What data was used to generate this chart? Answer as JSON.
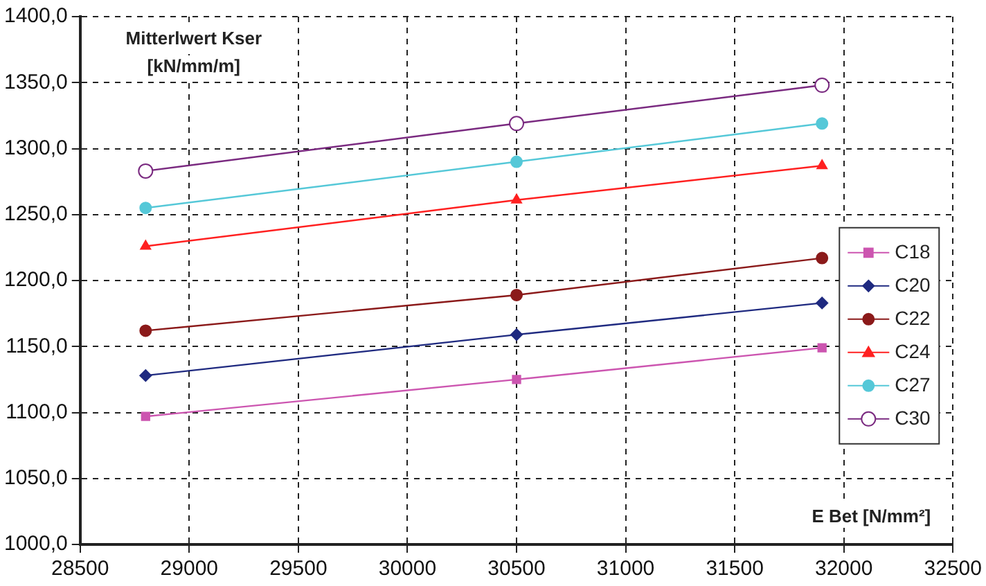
{
  "chart_data": {
    "type": "line",
    "ylabel": "Mitterlwert Kser\n[kN/mm/m]",
    "xlabel": "E Bet [N/mm²]",
    "x": [
      28800,
      30500,
      31900
    ],
    "series": [
      {
        "name": "C18",
        "color": "#cc55b0",
        "marker": "square",
        "values": [
          1097,
          1125,
          1149
        ]
      },
      {
        "name": "C20",
        "color": "#1f2a80",
        "marker": "diamond",
        "values": [
          1128,
          1159,
          1183
        ]
      },
      {
        "name": "C22",
        "color": "#8b1a1a",
        "marker": "circle",
        "values": [
          1162,
          1189,
          1217
        ]
      },
      {
        "name": "C24",
        "color": "#ff2020",
        "marker": "triangle",
        "values": [
          1226,
          1261,
          1287
        ]
      },
      {
        "name": "C27",
        "color": "#55c8d8",
        "marker": "circle",
        "values": [
          1255,
          1290,
          1319
        ]
      },
      {
        "name": "C30",
        "color": "#7a2a80",
        "marker": "circle-open",
        "values": [
          1283,
          1319,
          1348
        ]
      }
    ],
    "xlim": [
      28500,
      32500
    ],
    "xticks": [
      28500,
      29000,
      29500,
      30000,
      30500,
      31000,
      31500,
      32000,
      32500
    ],
    "ylim": [
      1000,
      1400
    ],
    "yticks": [
      {
        "value": 1000,
        "label": "1000,0"
      },
      {
        "value": 1050,
        "label": "1050,0"
      },
      {
        "value": 1100,
        "label": "1100,0"
      },
      {
        "value": 1150,
        "label": "1150,0"
      },
      {
        "value": 1200,
        "label": "1200,0"
      },
      {
        "value": 1250,
        "label": "1250,0"
      },
      {
        "value": 1300,
        "label": "1300,0"
      },
      {
        "value": 1350,
        "label": "1350,0"
      },
      {
        "value": 1400,
        "label": "1400,0"
      }
    ],
    "grid": true,
    "legend": "right",
    "line_style": "solid"
  }
}
